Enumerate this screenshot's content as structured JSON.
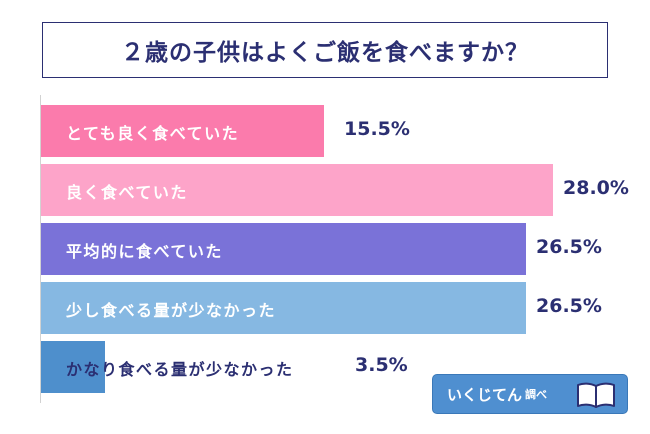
{
  "chart_data": {
    "type": "bar",
    "orientation": "horizontal",
    "title": "２歳の子供はよくご飯を食べますか？",
    "categories": [
      "とても良く食べていた",
      "良く食べていた",
      "平均的に食べていた",
      "少し食べる量が少なかった",
      "かなり食べる量が少なかった"
    ],
    "values": [
      15.5,
      28.0,
      26.5,
      26.5,
      3.5
    ],
    "value_labels": [
      "15.5%",
      "28.0%",
      "26.5%",
      "26.5%",
      "3.5%"
    ],
    "colors": [
      "#fb7bac",
      "#fda4c9",
      "#7a72d8",
      "#86b8e2",
      "#4e8fcc"
    ],
    "xlim": [
      0,
      28.0
    ],
    "grid": false,
    "legend": "none"
  },
  "brand": {
    "name": "いくじてん",
    "suffix": "調べ",
    "icon": "open-book-icon",
    "color": "#4f8fd0"
  },
  "colors": {
    "title": "#2b2f72",
    "axis": "#d2d2d2"
  }
}
